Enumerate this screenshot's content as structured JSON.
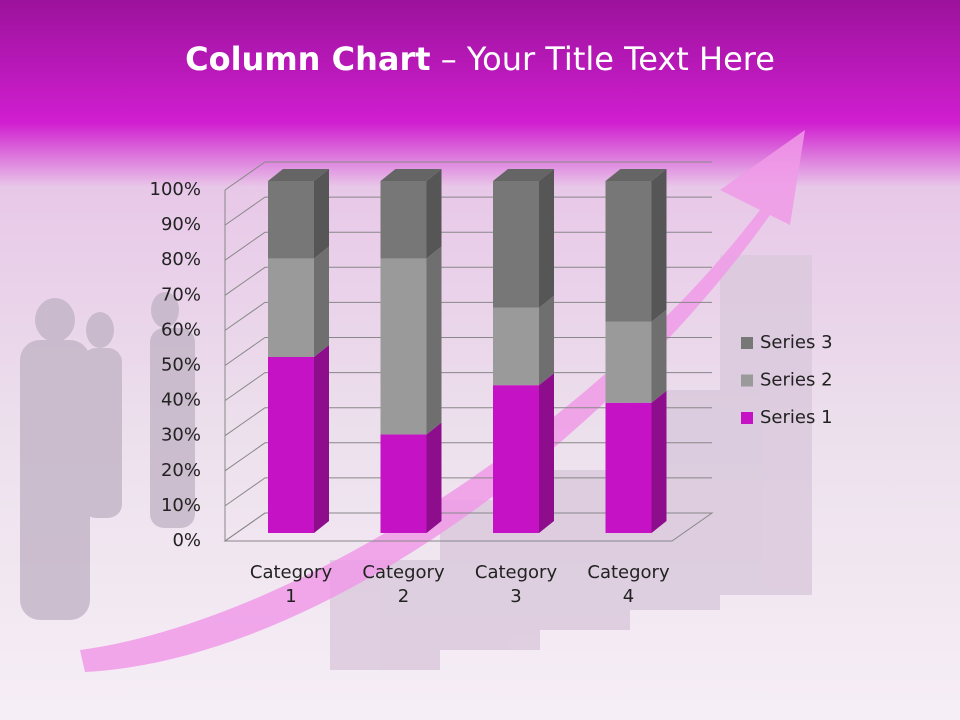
{
  "chart_data": {
    "type": "bar",
    "stacked": true,
    "title": {
      "bold": "Column Chart",
      "rest": "– Your Title Text Here"
    },
    "categories": [
      "Category 1",
      "Category 2",
      "Category 3",
      "Category 4"
    ],
    "series": [
      {
        "name": "Series 1",
        "color": "#c412c4",
        "values": [
          50,
          28,
          42,
          37
        ]
      },
      {
        "name": "Series 2",
        "color": "#9a9a9a",
        "values": [
          28,
          50,
          22,
          23
        ]
      },
      {
        "name": "Series 3",
        "color": "#777777",
        "values": [
          22,
          22,
          36,
          40
        ]
      }
    ],
    "ylim": [
      0,
      100
    ],
    "yticks": [
      {
        "value": 0,
        "label": "0%"
      },
      {
        "value": 10,
        "label": "10%"
      },
      {
        "value": 20,
        "label": "20%"
      },
      {
        "value": 30,
        "label": "30%"
      },
      {
        "value": 40,
        "label": "40%"
      },
      {
        "value": 50,
        "label": "50%"
      },
      {
        "value": 60,
        "label": "60%"
      },
      {
        "value": 70,
        "label": "70%"
      },
      {
        "value": 80,
        "label": "80%"
      },
      {
        "value": 90,
        "label": "90%"
      },
      {
        "value": 100,
        "label": "100%"
      }
    ],
    "grid": true,
    "legend": "right"
  }
}
